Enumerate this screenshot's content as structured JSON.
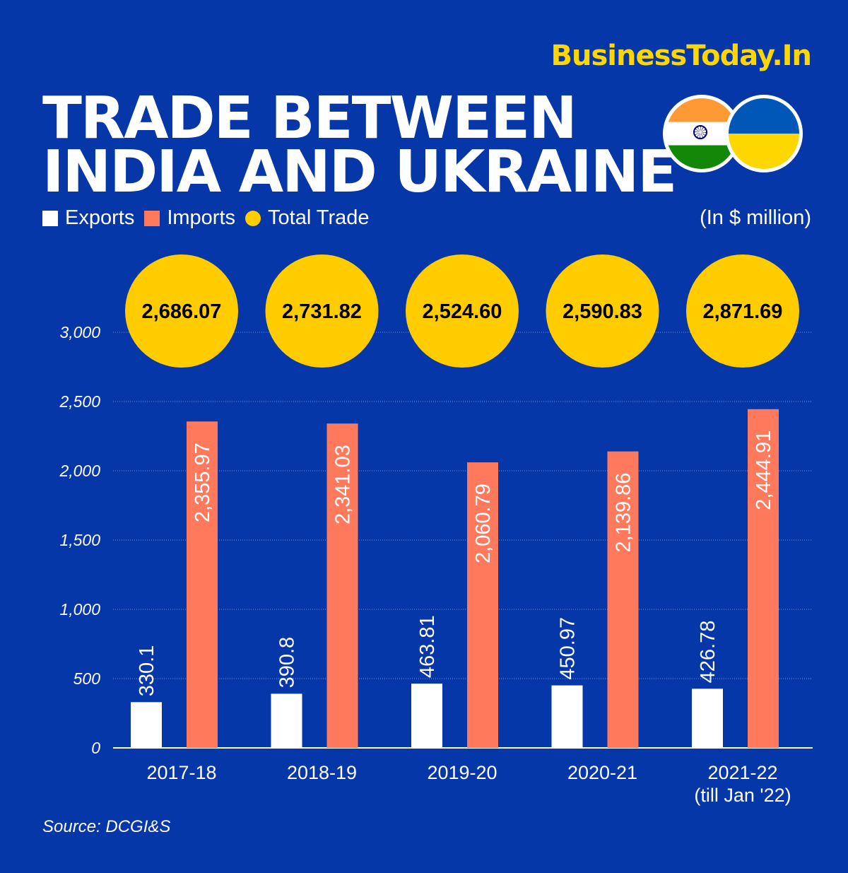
{
  "brand": "BusinessToday.In",
  "title_line1": "TRADE BETWEEN",
  "title_line2": "INDIA AND UKRAINE",
  "unit": "(In $ million)",
  "source": "Source: DCGI&S",
  "colors": {
    "background": "#0637A8",
    "exports": "#FFFFFF",
    "imports": "#FF7A5C",
    "total": "#FFCC00",
    "brand": "#FFD700"
  },
  "chart_data": {
    "type": "bar",
    "legend": [
      "Exports",
      "Imports",
      "Total Trade"
    ],
    "categories": [
      "2017-18",
      "2018-19",
      "2019-20",
      "2020-21",
      "2021-22"
    ],
    "category_notes": [
      "",
      "",
      "",
      "",
      "(till Jan '22)"
    ],
    "series": [
      {
        "name": "Exports",
        "values": [
          330.1,
          390.8,
          463.81,
          450.97,
          426.78
        ],
        "labels": [
          "330.1",
          "390.8",
          "463.81",
          "450.97",
          "426.78"
        ]
      },
      {
        "name": "Imports",
        "values": [
          2355.97,
          2341.03,
          2060.79,
          2139.86,
          2444.91
        ],
        "labels": [
          "2,355.97",
          "2,341.03",
          "2,060.79",
          "2,139.86",
          "2,444.91"
        ]
      },
      {
        "name": "Total Trade",
        "values": [
          2686.07,
          2731.82,
          2524.6,
          2590.83,
          2871.69
        ],
        "labels": [
          "2,686.07",
          "2,731.82",
          "2,524.60",
          "2,590.83",
          "2,871.69"
        ]
      }
    ],
    "yticks": [
      0,
      500,
      1000,
      1500,
      2000,
      2500,
      3000
    ],
    "ytick_labels": [
      "0",
      "500",
      "1,000",
      "1,500",
      "2,000",
      "2,500",
      "3,000"
    ],
    "ylim": [
      0,
      3000
    ],
    "grid": true,
    "legend_position": "top-left"
  }
}
